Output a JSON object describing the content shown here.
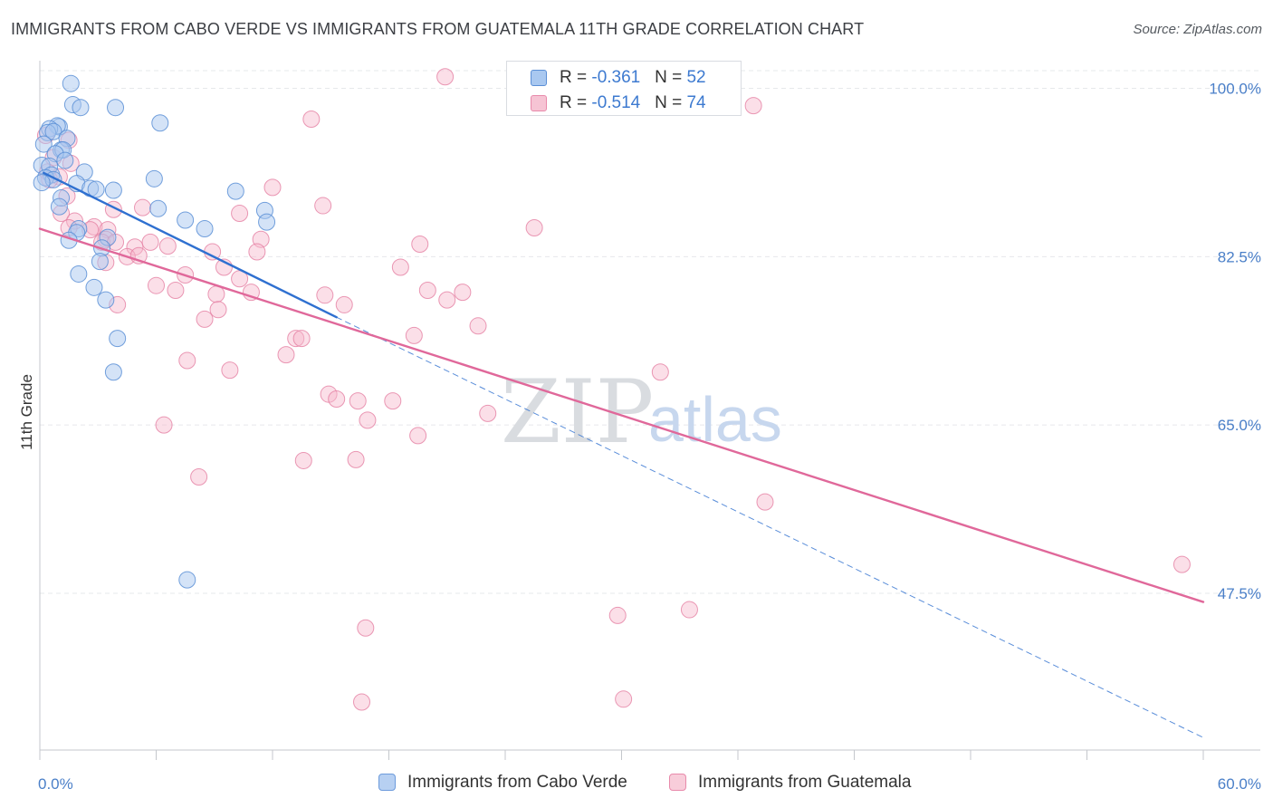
{
  "title": "IMMIGRANTS FROM CABO VERDE VS IMMIGRANTS FROM GUATEMALA 11TH GRADE CORRELATION CHART",
  "source": "Source: ZipAtlas.com",
  "watermark": {
    "zip": "ZIP",
    "atlas": "atlas"
  },
  "legend": {
    "cabo": {
      "r_label": "R = ",
      "r_value": "-0.361",
      "n_label": "N = ",
      "n_value": "52"
    },
    "guat": {
      "r_label": "R = ",
      "r_value": "-0.514",
      "n_label": "N = ",
      "n_value": "74"
    }
  },
  "bottom_legend": {
    "cabo": "Immigrants from Cabo Verde",
    "guat": "Immigrants from Guatemala"
  },
  "colors": {
    "cabo_fill": "#a9c8f0",
    "cabo_stroke": "#5b8fd6",
    "cabo_line": "#2f70d0",
    "guat_fill": "#f6b8cc",
    "guat_stroke": "#e57fa2",
    "guat_line": "#e0689a",
    "grid": "#e6e8eb",
    "tick_label": "#4a7fc8"
  },
  "chart_data": {
    "type": "scatter",
    "title": "IMMIGRANTS FROM CABO VERDE VS IMMIGRANTS FROM GUATEMALA 11TH GRADE CORRELATION CHART",
    "xlabel": "",
    "ylabel": "11th Grade",
    "xlim": [
      0,
      60
    ],
    "ylim": [
      32,
      102
    ],
    "x_tick_labels": [
      {
        "value": 0,
        "label": "0.0%"
      },
      {
        "value": 60,
        "label": "60.0%"
      }
    ],
    "y_ticks": [
      {
        "value": 100,
        "label": "100.0%"
      },
      {
        "value": 82.5,
        "label": "82.5%"
      },
      {
        "value": 65,
        "label": "65.0%"
      },
      {
        "value": 47.5,
        "label": "47.5%"
      }
    ],
    "x_minor_ticks": [
      0,
      6,
      12,
      18,
      24,
      30,
      36,
      42,
      48,
      54,
      60
    ],
    "series": [
      {
        "name": "Immigrants from Cabo Verde",
        "R": -0.361,
        "N": 52,
        "points": [
          [
            1.6,
            100.5
          ],
          [
            1.7,
            98.3
          ],
          [
            2.1,
            98.0
          ],
          [
            3.9,
            98.0
          ],
          [
            6.2,
            96.4
          ],
          [
            1.0,
            96.0
          ],
          [
            0.9,
            96.1
          ],
          [
            0.5,
            95.8
          ],
          [
            0.4,
            95.4
          ],
          [
            0.7,
            95.5
          ],
          [
            1.4,
            94.8
          ],
          [
            0.2,
            94.2
          ],
          [
            1.1,
            93.6
          ],
          [
            1.2,
            93.6
          ],
          [
            0.8,
            93.2
          ],
          [
            1.3,
            92.5
          ],
          [
            0.1,
            92.0
          ],
          [
            0.5,
            91.9
          ],
          [
            2.3,
            91.3
          ],
          [
            0.6,
            91.0
          ],
          [
            0.3,
            90.7
          ],
          [
            5.9,
            90.6
          ],
          [
            0.7,
            90.5
          ],
          [
            0.1,
            90.2
          ],
          [
            1.9,
            90.1
          ],
          [
            2.6,
            89.6
          ],
          [
            3.8,
            89.4
          ],
          [
            10.1,
            89.3
          ],
          [
            2.9,
            89.5
          ],
          [
            1.1,
            88.6
          ],
          [
            1.0,
            87.7
          ],
          [
            6.1,
            87.5
          ],
          [
            11.6,
            87.3
          ],
          [
            7.5,
            86.3
          ],
          [
            11.7,
            86.1
          ],
          [
            8.5,
            85.4
          ],
          [
            2.0,
            85.4
          ],
          [
            1.9,
            85.0
          ],
          [
            3.5,
            84.5
          ],
          [
            1.5,
            84.2
          ],
          [
            3.2,
            83.4
          ],
          [
            3.1,
            82.0
          ],
          [
            2.0,
            80.7
          ],
          [
            2.8,
            79.3
          ],
          [
            3.4,
            78.0
          ],
          [
            4.0,
            74.0
          ],
          [
            3.8,
            70.5
          ],
          [
            7.6,
            48.9
          ]
        ]
      },
      {
        "name": "Immigrants from Guatemala",
        "R": -0.514,
        "N": 74,
        "points": [
          [
            20.9,
            101.2
          ],
          [
            36.8,
            98.2
          ],
          [
            14.0,
            96.8
          ],
          [
            0.3,
            95.1
          ],
          [
            1.5,
            94.6
          ],
          [
            0.7,
            92.8
          ],
          [
            1.6,
            92.2
          ],
          [
            0.4,
            91.3
          ],
          [
            1.0,
            90.8
          ],
          [
            0.5,
            90.5
          ],
          [
            12.0,
            89.7
          ],
          [
            1.4,
            88.8
          ],
          [
            14.6,
            87.8
          ],
          [
            5.3,
            87.6
          ],
          [
            3.8,
            87.4
          ],
          [
            10.3,
            87.0
          ],
          [
            1.1,
            87.0
          ],
          [
            1.8,
            86.2
          ],
          [
            2.8,
            85.6
          ],
          [
            3.5,
            85.3
          ],
          [
            2.6,
            85.3
          ],
          [
            1.5,
            85.5
          ],
          [
            25.5,
            85.5
          ],
          [
            3.4,
            84.3
          ],
          [
            3.2,
            84.0
          ],
          [
            5.7,
            84.0
          ],
          [
            3.9,
            84.0
          ],
          [
            11.4,
            84.3
          ],
          [
            6.6,
            83.6
          ],
          [
            4.9,
            83.5
          ],
          [
            19.6,
            83.8
          ],
          [
            8.9,
            83.0
          ],
          [
            11.2,
            83.0
          ],
          [
            4.5,
            82.5
          ],
          [
            5.1,
            82.6
          ],
          [
            3.4,
            81.9
          ],
          [
            9.5,
            81.4
          ],
          [
            18.6,
            81.4
          ],
          [
            7.5,
            80.6
          ],
          [
            10.3,
            80.2
          ],
          [
            6.0,
            79.5
          ],
          [
            7.0,
            79.0
          ],
          [
            20.0,
            79.0
          ],
          [
            10.9,
            78.8
          ],
          [
            21.8,
            78.8
          ],
          [
            14.7,
            78.5
          ],
          [
            9.1,
            78.6
          ],
          [
            21.0,
            78.0
          ],
          [
            4.0,
            77.5
          ],
          [
            15.7,
            77.5
          ],
          [
            9.2,
            77.0
          ],
          [
            8.5,
            76.0
          ],
          [
            22.6,
            75.3
          ],
          [
            13.2,
            74.0
          ],
          [
            13.5,
            74.0
          ],
          [
            19.3,
            74.3
          ],
          [
            12.7,
            72.3
          ],
          [
            7.6,
            71.7
          ],
          [
            9.8,
            70.7
          ],
          [
            32.0,
            70.5
          ],
          [
            14.9,
            68.2
          ],
          [
            15.3,
            67.7
          ],
          [
            16.4,
            67.5
          ],
          [
            18.2,
            67.5
          ],
          [
            23.1,
            66.2
          ],
          [
            16.9,
            65.5
          ],
          [
            6.4,
            65.0
          ],
          [
            19.5,
            63.9
          ],
          [
            16.3,
            61.4
          ],
          [
            13.6,
            61.3
          ],
          [
            8.2,
            59.6
          ],
          [
            37.4,
            57.0
          ],
          [
            58.9,
            50.5
          ],
          [
            29.8,
            45.2
          ],
          [
            33.5,
            45.8
          ],
          [
            16.8,
            43.9
          ],
          [
            16.6,
            36.2
          ],
          [
            30.1,
            36.5
          ]
        ]
      }
    ],
    "trend_lines": [
      {
        "series": "Immigrants from Cabo Verde",
        "style": "solid",
        "x": [
          0.2,
          15.3
        ],
        "y": [
          91.2,
          76.2
        ]
      },
      {
        "series": "Immigrants from Cabo Verde",
        "style": "dashed",
        "x": [
          15.3,
          60.0
        ],
        "y": [
          76.2,
          32.5
        ]
      },
      {
        "series": "Immigrants from Guatemala",
        "style": "solid",
        "x": [
          0.0,
          60.0
        ],
        "y": [
          85.4,
          46.6
        ]
      }
    ]
  }
}
